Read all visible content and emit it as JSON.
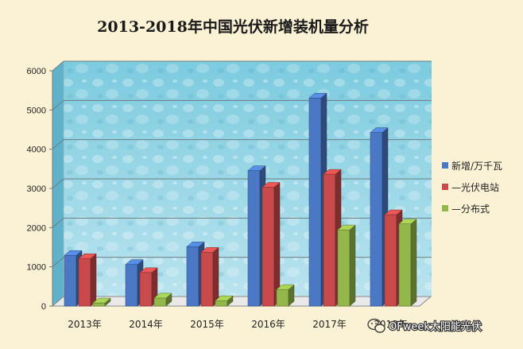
{
  "chart_data": {
    "type": "bar",
    "title": "2013-2018年中国光伏新增装机量分析",
    "categories": [
      "2013年",
      "2014年",
      "2015年",
      "2016年",
      "2017年",
      "2018年"
    ],
    "series": [
      {
        "name": "新增/万千瓦",
        "color": "#4a78c5",
        "values": [
          1292,
          1060,
          1513,
          3454,
          5306,
          4426
        ]
      },
      {
        "name": "—光伏电站",
        "color": "#c84a4a",
        "values": [
          1212,
          855,
          1374,
          3031,
          3362,
          2330
        ]
      },
      {
        "name": "—分布式",
        "color": "#93b74a",
        "values": [
          80,
          205,
          139,
          423,
          1944,
          2096
        ]
      }
    ],
    "yticks": [
      0,
      1000,
      2000,
      3000,
      4000,
      5000,
      6000
    ],
    "ylim": [
      0,
      6000
    ],
    "grid": true,
    "legend": "right"
  },
  "watermark": "OFweek太阳能光伏"
}
